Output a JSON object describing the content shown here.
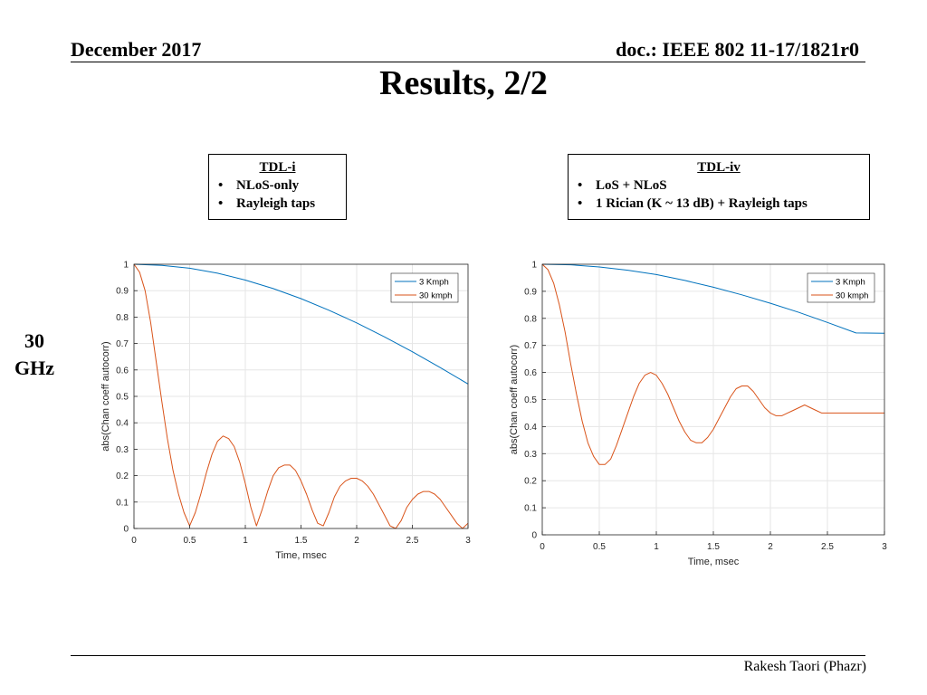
{
  "header": {
    "left": "December 2017",
    "right": "doc.: IEEE 802 11-17/1821r0"
  },
  "title": "Results, 2/2",
  "frequency_label": [
    "30",
    "GHz"
  ],
  "boxes": [
    {
      "title": "TDL-i",
      "items": [
        "NLoS-only",
        "Rayleigh taps"
      ]
    },
    {
      "title": "TDL-iv",
      "items": [
        "LoS + NLoS",
        "1 Rician (K ~ 13 dB) + Rayleigh taps"
      ]
    }
  ],
  "footer": "Rakesh Taori (Phazr)",
  "colors": {
    "series_blue": "#0072BD",
    "series_orange": "#D95319",
    "grid": "#e6e6e6",
    "axis": "#262626"
  },
  "chart_data": [
    {
      "type": "line",
      "xlabel": "Time, msec",
      "ylabel": "abs(Chan coeff autocorr)",
      "xlim": [
        0,
        3
      ],
      "ylim": [
        0,
        1
      ],
      "xticks": [
        0,
        0.5,
        1,
        1.5,
        2,
        2.5,
        3
      ],
      "yticks": [
        0,
        0.1,
        0.2,
        0.3,
        0.4,
        0.5,
        0.6,
        0.7,
        0.8,
        0.9,
        1
      ],
      "grid": true,
      "legend_position": "top-right",
      "series": [
        {
          "name": "3 Kmph",
          "color": "#0072BD",
          "x": [
            0,
            0.25,
            0.5,
            0.75,
            1.0,
            1.25,
            1.5,
            1.75,
            2.0,
            2.25,
            2.5,
            2.75,
            3.0
          ],
          "y": [
            1.0,
            0.996,
            0.985,
            0.966,
            0.94,
            0.908,
            0.87,
            0.826,
            0.778,
            0.725,
            0.669,
            0.609,
            0.547
          ]
        },
        {
          "name": "30 kmph",
          "color": "#D95319",
          "x": [
            0,
            0.05,
            0.1,
            0.15,
            0.2,
            0.25,
            0.3,
            0.35,
            0.4,
            0.45,
            0.5,
            0.55,
            0.6,
            0.65,
            0.7,
            0.75,
            0.8,
            0.85,
            0.9,
            0.95,
            1.0,
            1.05,
            1.1,
            1.15,
            1.2,
            1.25,
            1.3,
            1.35,
            1.4,
            1.45,
            1.5,
            1.55,
            1.6,
            1.65,
            1.7,
            1.75,
            1.8,
            1.85,
            1.9,
            1.95,
            2.0,
            2.05,
            2.1,
            2.15,
            2.2,
            2.25,
            2.3,
            2.35,
            2.4,
            2.45,
            2.5,
            2.55,
            2.6,
            2.65,
            2.7,
            2.75,
            2.8,
            2.85,
            2.9,
            2.95,
            3.0
          ],
          "y": [
            1.0,
            0.97,
            0.9,
            0.78,
            0.63,
            0.48,
            0.34,
            0.22,
            0.13,
            0.06,
            0.01,
            0.06,
            0.13,
            0.21,
            0.28,
            0.33,
            0.35,
            0.34,
            0.31,
            0.25,
            0.17,
            0.08,
            0.01,
            0.07,
            0.14,
            0.2,
            0.23,
            0.24,
            0.24,
            0.22,
            0.18,
            0.13,
            0.07,
            0.02,
            0.01,
            0.06,
            0.12,
            0.16,
            0.18,
            0.19,
            0.19,
            0.18,
            0.16,
            0.13,
            0.09,
            0.05,
            0.01,
            0.0,
            0.03,
            0.08,
            0.11,
            0.13,
            0.14,
            0.14,
            0.13,
            0.11,
            0.08,
            0.05,
            0.02,
            0.0,
            0.02
          ]
        }
      ]
    },
    {
      "type": "line",
      "xlabel": "Time, msec",
      "ylabel": "abs(Chan coeff autocorr)",
      "xlim": [
        0,
        3
      ],
      "ylim": [
        0,
        1
      ],
      "xticks": [
        0,
        0.5,
        1,
        1.5,
        2,
        2.5,
        3
      ],
      "yticks": [
        0,
        0.1,
        0.2,
        0.3,
        0.4,
        0.5,
        0.6,
        0.7,
        0.8,
        0.9,
        1
      ],
      "grid": true,
      "legend_position": "top-right",
      "series": [
        {
          "name": "3 Kmph",
          "color": "#0072BD",
          "x": [
            0,
            0.25,
            0.5,
            0.75,
            1.0,
            1.25,
            1.5,
            1.75,
            2.0,
            2.25,
            2.5,
            2.75,
            3.0
          ],
          "y": [
            1.0,
            0.998,
            0.99,
            0.978,
            0.962,
            0.94,
            0.915,
            0.887,
            0.856,
            0.822,
            0.785,
            0.746,
            0.745
          ]
        },
        {
          "name": "30 kmph",
          "color": "#D95319",
          "x": [
            0,
            0.05,
            0.1,
            0.15,
            0.2,
            0.25,
            0.3,
            0.35,
            0.4,
            0.45,
            0.5,
            0.55,
            0.6,
            0.65,
            0.7,
            0.75,
            0.8,
            0.85,
            0.9,
            0.95,
            1.0,
            1.05,
            1.1,
            1.15,
            1.2,
            1.25,
            1.3,
            1.35,
            1.4,
            1.45,
            1.5,
            1.55,
            1.6,
            1.65,
            1.7,
            1.75,
            1.8,
            1.85,
            1.9,
            1.95,
            2.0,
            2.05,
            2.1,
            2.15,
            2.2,
            2.25,
            2.3,
            2.35,
            2.4,
            2.45,
            2.5,
            2.55,
            2.6,
            2.65,
            2.7,
            2.75,
            2.8,
            2.85,
            2.9,
            2.95,
            3.0
          ],
          "y": [
            1.0,
            0.98,
            0.93,
            0.85,
            0.75,
            0.63,
            0.52,
            0.42,
            0.34,
            0.29,
            0.26,
            0.26,
            0.28,
            0.33,
            0.39,
            0.45,
            0.51,
            0.56,
            0.59,
            0.6,
            0.59,
            0.56,
            0.52,
            0.47,
            0.42,
            0.38,
            0.35,
            0.34,
            0.34,
            0.36,
            0.39,
            0.43,
            0.47,
            0.51,
            0.54,
            0.55,
            0.55,
            0.53,
            0.5,
            0.47,
            0.45,
            0.44,
            0.44,
            0.45,
            0.46,
            0.47,
            0.48,
            0.47,
            0.46,
            0.45,
            0.45,
            0.45,
            0.45,
            0.45,
            0.45,
            0.45,
            0.45,
            0.45,
            0.45,
            0.45,
            0.45
          ]
        }
      ]
    }
  ]
}
